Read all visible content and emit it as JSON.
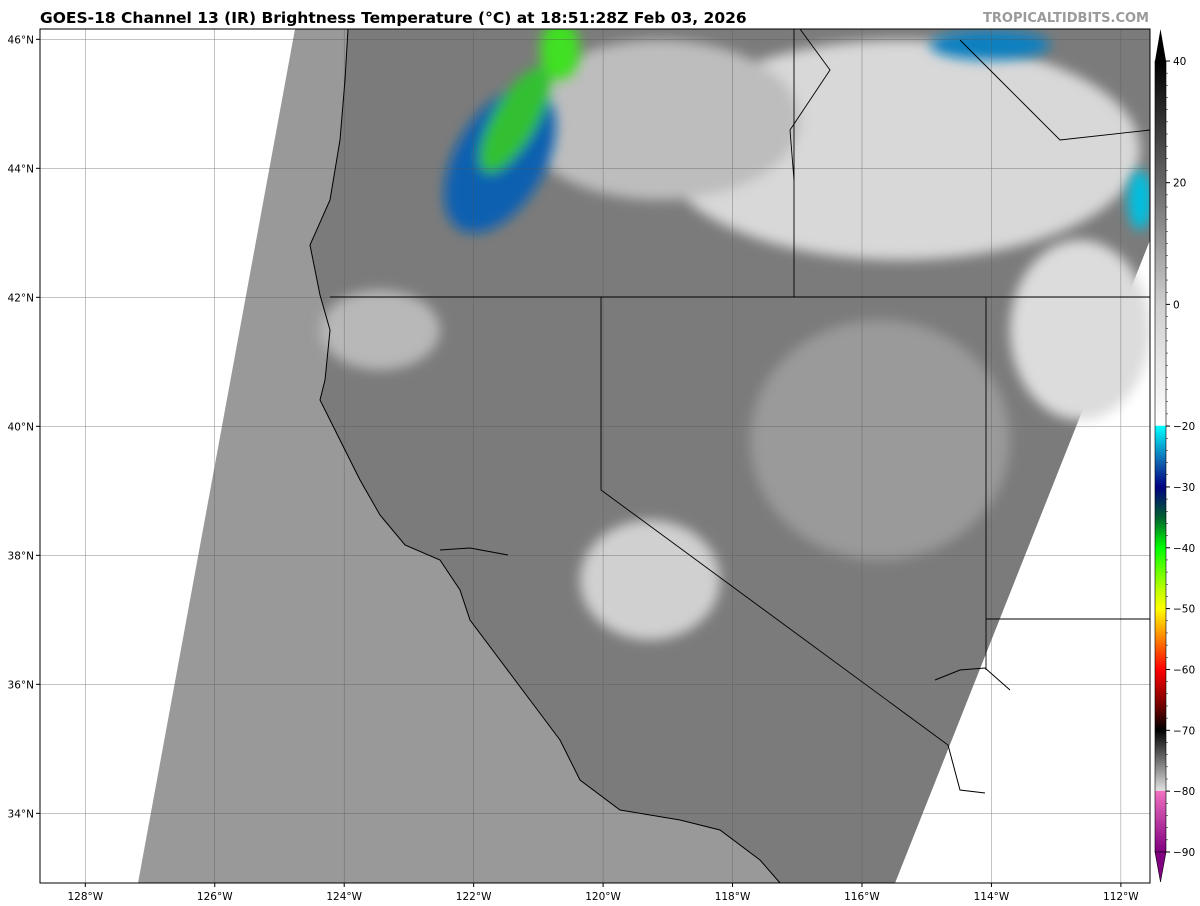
{
  "title": "GOES-18 Channel 13 (IR) Brightness Temperature (°C) at 18:51:28Z Feb 03, 2026",
  "watermark": "TROPICALTIDBITS.COM",
  "map": {
    "extent": {
      "lon": [
        -128.7,
        -111.55
      ],
      "lat": [
        32.92,
        46.16
      ]
    },
    "x_ticks": [
      {
        "lon": -128,
        "label": "128°W"
      },
      {
        "lon": -126,
        "label": "126°W"
      },
      {
        "lon": -124,
        "label": "124°W"
      },
      {
        "lon": -122,
        "label": "122°W"
      },
      {
        "lon": -120,
        "label": "120°W"
      },
      {
        "lon": -118,
        "label": "118°W"
      },
      {
        "lon": -116,
        "label": "116°W"
      },
      {
        "lon": -114,
        "label": "114°W"
      },
      {
        "lon": -112,
        "label": "112°W"
      }
    ],
    "y_ticks": [
      {
        "lat": 46,
        "label": "46°N"
      },
      {
        "lat": 44,
        "label": "44°N"
      },
      {
        "lat": 42,
        "label": "42°N"
      },
      {
        "lat": 40,
        "label": "40°N"
      },
      {
        "lat": 38,
        "label": "38°N"
      },
      {
        "lat": 36,
        "label": "36°N"
      },
      {
        "lat": 34,
        "label": "34°N"
      }
    ],
    "grid": true
  },
  "colorbar": {
    "range": [
      -90,
      40
    ],
    "extend": "both",
    "ticks": [
      {
        "value": 40,
        "label": "40"
      },
      {
        "value": 20,
        "label": "20"
      },
      {
        "value": 0,
        "label": "0"
      },
      {
        "value": -20,
        "label": "−20"
      },
      {
        "value": -30,
        "label": "−30"
      },
      {
        "value": -40,
        "label": "−40"
      },
      {
        "value": -50,
        "label": "−50"
      },
      {
        "value": -60,
        "label": "−60"
      },
      {
        "value": -70,
        "label": "−70"
      },
      {
        "value": -80,
        "label": "−80"
      },
      {
        "value": -90,
        "label": "−90"
      }
    ],
    "stops": [
      {
        "value": 40,
        "color": "#000000"
      },
      {
        "value": 0,
        "color": "#cfcfcf"
      },
      {
        "value": -19.9,
        "color": "#ffffff"
      },
      {
        "value": -20,
        "color": "#00ffff"
      },
      {
        "value": -26,
        "color": "#1060b0"
      },
      {
        "value": -30,
        "color": "#000080"
      },
      {
        "value": -35,
        "color": "#006030"
      },
      {
        "value": -40,
        "color": "#00ff00"
      },
      {
        "value": -47,
        "color": "#c0ff00"
      },
      {
        "value": -50,
        "color": "#ffff00"
      },
      {
        "value": -55,
        "color": "#ff8000"
      },
      {
        "value": -60,
        "color": "#ff0000"
      },
      {
        "value": -66,
        "color": "#700000"
      },
      {
        "value": -69.9,
        "color": "#000000"
      },
      {
        "value": -79.9,
        "color": "#e0e0e0"
      },
      {
        "value": -80,
        "color": "#f070c0"
      },
      {
        "value": -90,
        "color": "#800080"
      }
    ]
  }
}
